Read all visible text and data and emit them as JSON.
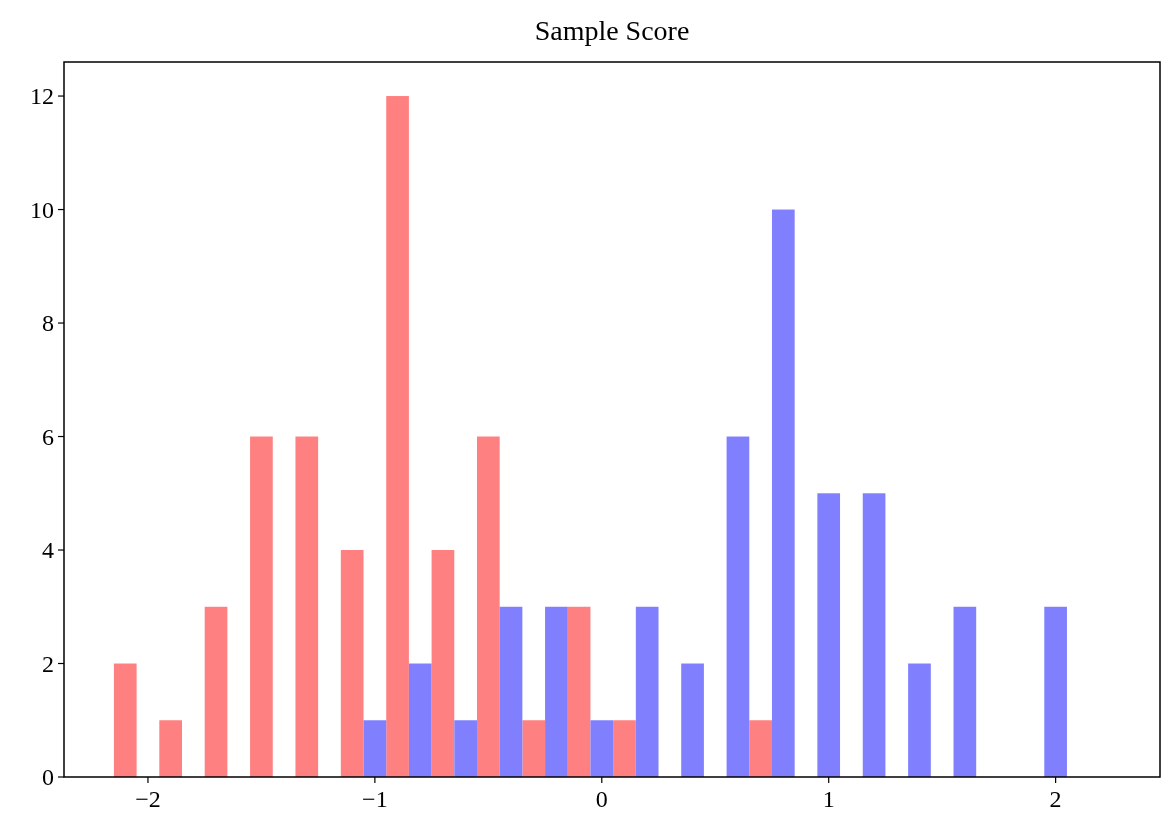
{
  "chart_data": {
    "type": "bar",
    "title": "Sample Score",
    "series": [
      {
        "color": "#ff8080",
        "x": [
          -2.1,
          -1.9,
          -1.7,
          -1.5,
          -1.3,
          -1.1,
          -0.9,
          -0.7,
          -0.5,
          -0.3,
          -0.1,
          0.1,
          0.7
        ],
        "values": [
          2,
          1,
          3,
          6,
          6,
          4,
          12,
          4,
          6,
          1,
          3,
          1,
          1
        ]
      },
      {
        "color": "#8080ff",
        "x": [
          -1.0,
          -0.8,
          -0.6,
          -0.4,
          -0.2,
          0,
          0.2,
          0.4,
          0.6,
          0.8,
          1.0,
          1.2,
          1.4,
          1.6,
          2.0
        ],
        "values": [
          1,
          2,
          1,
          3,
          3,
          1,
          3,
          2,
          6,
          10,
          5,
          5,
          2,
          3,
          3
        ]
      }
    ],
    "xlim": [
      -2.37,
      2.46
    ],
    "xticks": [
      {
        "value": -2,
        "label": "−2"
      },
      {
        "value": -1,
        "label": "−1"
      },
      0,
      1,
      2
    ],
    "ylim": [
      0,
      12.6
    ],
    "yticks": [
      0,
      2,
      4,
      6,
      8,
      10,
      12
    ],
    "grid": false
  }
}
